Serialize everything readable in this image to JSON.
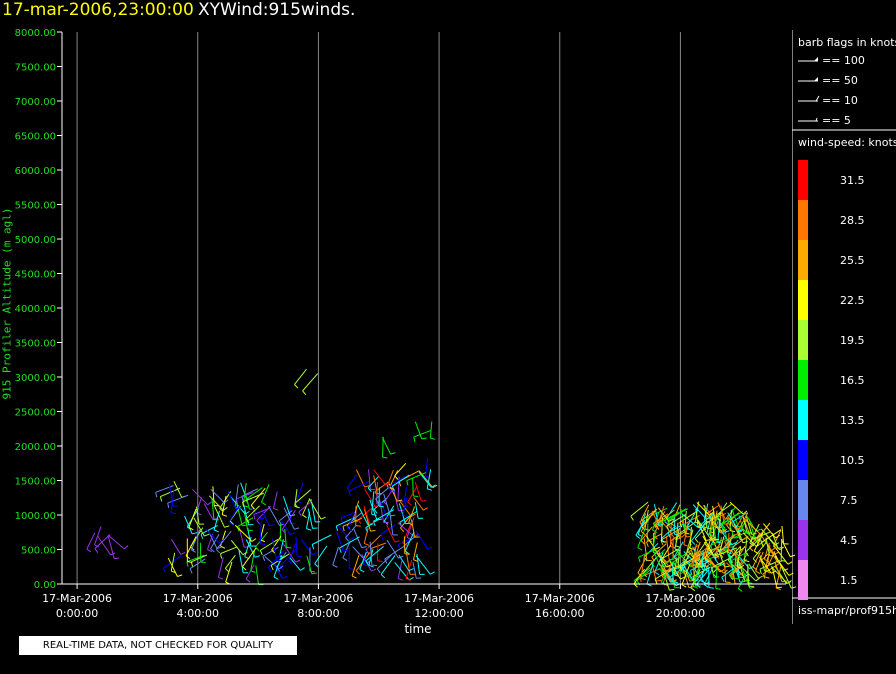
{
  "header": {
    "date_time": "17-mar-2006,23:00:00",
    "plot_name": "XYWind:915winds."
  },
  "footer": {
    "qc_notice": "REAL-TIME DATA, NOT CHECKED FOR QUALITY"
  },
  "colors": {
    "axis": "#ffffff",
    "ytick_label": "#22dd22",
    "grid": "#888888",
    "title_date": "#ffff00"
  },
  "legend": {
    "barb_title": "barb flags in knots",
    "barbs": [
      "== 100",
      "== 50",
      "== 10",
      "== 5"
    ],
    "speed_title": "wind-speed: knots",
    "source": "iss-mapr/prof915h",
    "scale": [
      {
        "label": "31.5",
        "color": "#ff0000"
      },
      {
        "label": "28.5",
        "color": "#ff7700"
      },
      {
        "label": "25.5",
        "color": "#ffaa00"
      },
      {
        "label": "22.5",
        "color": "#ffff00"
      },
      {
        "label": "19.5",
        "color": "#aaff33"
      },
      {
        "label": "16.5",
        "color": "#00ee00"
      },
      {
        "label": "13.5",
        "color": "#00ffff"
      },
      {
        "label": "10.5",
        "color": "#0000ff"
      },
      {
        "label": "7.5",
        "color": "#6688ee"
      },
      {
        "label": "4.5",
        "color": "#9933ee"
      },
      {
        "label": "1.5",
        "color": "#ee88ee"
      }
    ]
  },
  "chart_data": {
    "type": "scatter",
    "title": "XYWind:915winds.",
    "xlabel": "time",
    "ylabel": "915 Profiler Altitude (m agl)",
    "xlim_hours": [
      -0.5,
      23.5
    ],
    "ylim": [
      0,
      8000
    ],
    "y_ticks": [
      "0.00",
      "500.00",
      "1000.00",
      "1500.00",
      "2000.00",
      "2500.00",
      "3000.00",
      "3500.00",
      "4000.00",
      "4500.00",
      "5000.00",
      "5500.00",
      "6000.00",
      "6500.00",
      "7000.00",
      "7500.00",
      "8000.00"
    ],
    "x_ticks": [
      {
        "hour": 0,
        "date": "17-Mar-2006",
        "time": "0:00:00"
      },
      {
        "hour": 4,
        "date": "17-Mar-2006",
        "time": "4:00:00"
      },
      {
        "hour": 8,
        "date": "17-Mar-2006",
        "time": "8:00:00"
      },
      {
        "hour": 12,
        "date": "17-Mar-2006",
        "time": "12:00:00"
      },
      {
        "hour": 16,
        "date": "17-Mar-2006",
        "time": "16:00:00"
      },
      {
        "hour": 20,
        "date": "17-Mar-2006",
        "time": "20:00:00"
      }
    ],
    "grid": "vertical",
    "clusters": [
      {
        "hours": [
          0.5,
          1.3
        ],
        "alt": [
          650,
          850
        ],
        "speeds": [
          7.5,
          4.5
        ],
        "n": 6
      },
      {
        "hours": [
          3.0,
          7.8
        ],
        "alt": [
          250,
          1500
        ],
        "speeds": [
          10.5,
          7.5,
          4.5,
          13.5,
          16.5,
          19.5,
          22.5
        ],
        "n": 120
      },
      {
        "hours": [
          8.2,
          9.3
        ],
        "alt": [
          500,
          900
        ],
        "speeds": [
          10.5,
          7.5,
          13.5
        ],
        "n": 10
      },
      {
        "hours": [
          9.2,
          11.4
        ],
        "alt": [
          300,
          1700
        ],
        "speeds": [
          10.5,
          4.5,
          7.5,
          13.5,
          25.5,
          28.5,
          31.5
        ],
        "n": 90
      },
      {
        "hours": [
          10.8,
          11.8
        ],
        "alt": [
          1500,
          2400
        ],
        "speeds": [
          10.5,
          13.5,
          16.5,
          22.5
        ],
        "n": 10
      },
      {
        "hours": [
          9.6,
          10.4
        ],
        "alt": [
          2100,
          2400
        ],
        "speeds": [
          16.5
        ],
        "n": 2
      },
      {
        "hours": [
          7.6,
          8.2
        ],
        "alt": [
          3050,
          3150
        ],
        "speeds": [
          19.5
        ],
        "n": 2
      },
      {
        "hours": [
          18.8,
          22.3
        ],
        "alt": [
          200,
          1200
        ],
        "speeds": [
          19.5,
          22.5,
          25.5,
          28.5,
          16.5,
          13.5
        ],
        "n": 260
      },
      {
        "hours": [
          22.6,
          23.4
        ],
        "alt": [
          200,
          900
        ],
        "speeds": [
          22.5,
          25.5,
          19.5
        ],
        "n": 40
      }
    ]
  }
}
